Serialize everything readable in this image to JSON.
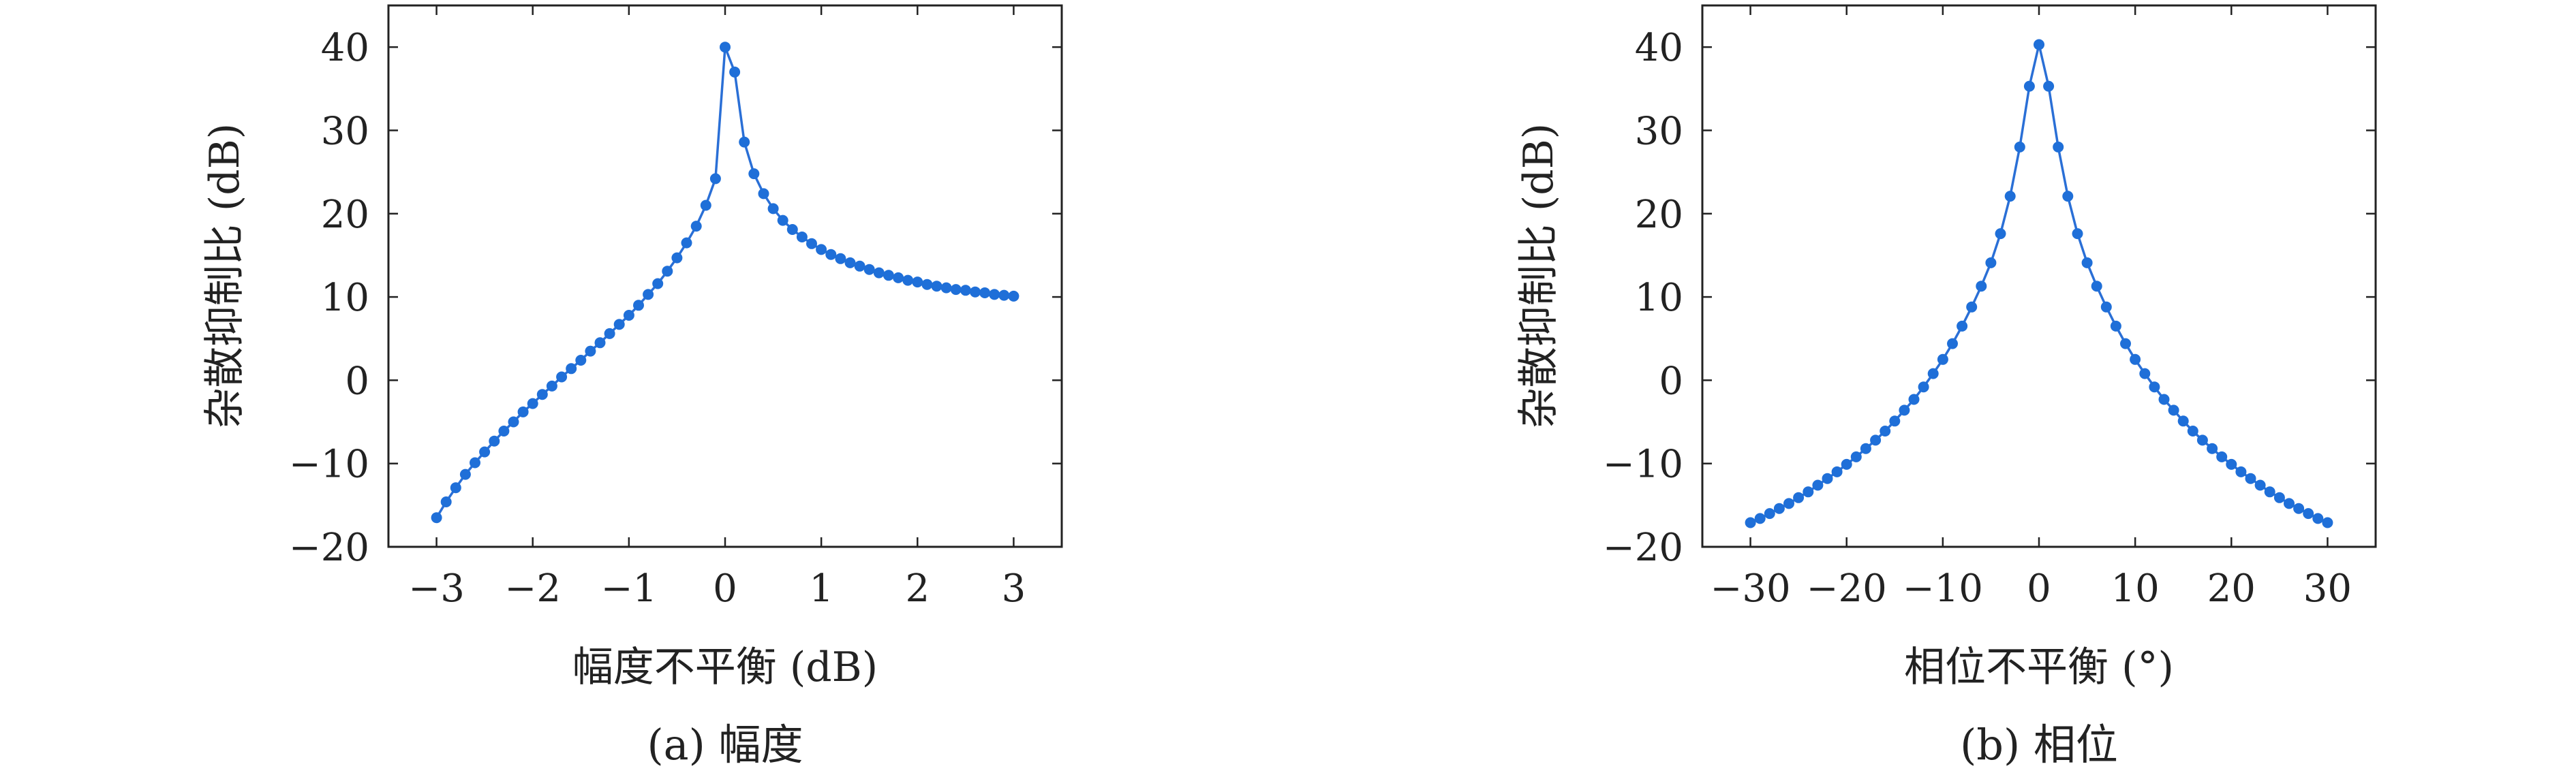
{
  "chart_data": [
    {
      "type": "line",
      "caption": "(a) 幅度",
      "xlabel": "幅度不平衡 (dB)",
      "ylabel": "杂散抑制比 (dB)",
      "xlim": [
        -3.5,
        3.5
      ],
      "ylim": [
        -20,
        45
      ],
      "xticks": [
        -3,
        -2,
        -1,
        0,
        1,
        2,
        3
      ],
      "xtick_labels": [
        "−3",
        "−2",
        "−1",
        "0",
        "1",
        "2",
        "3"
      ],
      "yticks": [
        -20,
        -10,
        0,
        10,
        20,
        30,
        40
      ],
      "ytick_labels": [
        "−20",
        "−10",
        "0",
        "10",
        "20",
        "30",
        "40"
      ],
      "grid": false,
      "series": [
        {
          "x": [
            -3.0,
            -2.9,
            -2.8,
            -2.7,
            -2.6,
            -2.5,
            -2.4,
            -2.3,
            -2.2,
            -2.1,
            -2.0,
            -1.9,
            -1.8,
            -1.7,
            -1.6,
            -1.5,
            -1.4,
            -1.3,
            -1.2,
            -1.1,
            -1.0,
            -0.9,
            -0.8,
            -0.7,
            -0.6,
            -0.5,
            -0.4,
            -0.3,
            -0.2,
            -0.1,
            0.0,
            0.1,
            0.2,
            0.3,
            0.4,
            0.5,
            0.6,
            0.7,
            0.8,
            0.9,
            1.0,
            1.1,
            1.2,
            1.3,
            1.4,
            1.5,
            1.6,
            1.7,
            1.8,
            1.9,
            2.0,
            2.1,
            2.2,
            2.3,
            2.4,
            2.5,
            2.6,
            2.7,
            2.8,
            2.9,
            3.0
          ],
          "y": [
            -16.5,
            -14.6,
            -12.9,
            -11.3,
            -9.9,
            -8.6,
            -7.3,
            -6.1,
            -5.0,
            -3.8,
            -2.8,
            -1.7,
            -0.7,
            0.4,
            1.4,
            2.4,
            3.5,
            4.5,
            5.6,
            6.7,
            7.8,
            9.0,
            10.3,
            11.6,
            13.1,
            14.7,
            16.5,
            18.5,
            21.0,
            24.2,
            40.0,
            37.0,
            28.6,
            24.8,
            22.4,
            20.6,
            19.2,
            18.1,
            17.2,
            16.4,
            15.7,
            15.1,
            14.6,
            14.1,
            13.7,
            13.3,
            12.9,
            12.6,
            12.3,
            12.0,
            11.8,
            11.5,
            11.3,
            11.1,
            10.9,
            10.8,
            10.6,
            10.5,
            10.3,
            10.2,
            10.1
          ]
        }
      ]
    },
    {
      "type": "line",
      "caption": "(b) 相位",
      "xlabel": "相位不平衡 (°)",
      "ylabel": "杂散抑制比 (dB)",
      "xlim": [
        -35,
        35
      ],
      "ylim": [
        -20,
        45
      ],
      "xticks": [
        -30,
        -20,
        -10,
        0,
        10,
        20,
        30
      ],
      "xtick_labels": [
        "−30",
        "−20",
        "−10",
        "0",
        "10",
        "20",
        "30"
      ],
      "yticks": [
        -20,
        -10,
        0,
        10,
        20,
        30,
        40
      ],
      "ytick_labels": [
        "−20",
        "−10",
        "0",
        "10",
        "20",
        "30",
        "40"
      ],
      "grid": false,
      "series": [
        {
          "x": [
            -30,
            -29,
            -28,
            -27,
            -26,
            -25,
            -24,
            -23,
            -22,
            -21,
            -20,
            -19,
            -18,
            -17,
            -16,
            -15,
            -14,
            -13,
            -12,
            -11,
            -10,
            -9,
            -8,
            -7,
            -6,
            -5,
            -4,
            -3,
            -2,
            -1,
            0,
            1,
            2,
            3,
            4,
            5,
            6,
            7,
            8,
            9,
            10,
            11,
            12,
            13,
            14,
            15,
            16,
            17,
            18,
            19,
            20,
            21,
            22,
            23,
            24,
            25,
            26,
            27,
            28,
            29,
            30
          ],
          "y": [
            -17.1,
            -16.6,
            -16.0,
            -15.4,
            -14.8,
            -14.1,
            -13.4,
            -12.6,
            -11.8,
            -11.0,
            -10.1,
            -9.2,
            -8.2,
            -7.2,
            -6.1,
            -4.9,
            -3.6,
            -2.3,
            -0.8,
            0.8,
            2.5,
            4.4,
            6.5,
            8.8,
            11.3,
            14.1,
            17.6,
            22.1,
            28.0,
            35.3,
            40.3,
            35.3,
            28.0,
            22.1,
            17.6,
            14.1,
            11.3,
            8.8,
            6.5,
            4.4,
            2.5,
            0.8,
            -0.8,
            -2.3,
            -3.6,
            -4.9,
            -6.1,
            -7.2,
            -8.2,
            -9.2,
            -10.1,
            -11.0,
            -11.8,
            -12.6,
            -13.4,
            -14.1,
            -14.8,
            -15.4,
            -16.0,
            -16.6,
            -17.1
          ]
        }
      ]
    }
  ]
}
